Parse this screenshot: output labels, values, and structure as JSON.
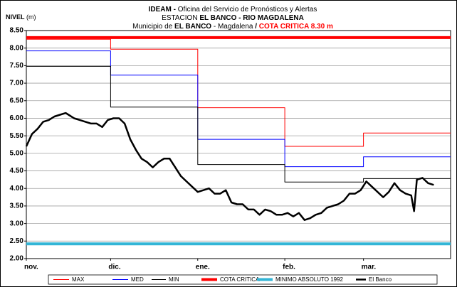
{
  "chart_data": {
    "type": "line",
    "title_lines": [
      [
        "IDEAM - ",
        "Oficina del Servicio de Pronósticos y Alertas"
      ],
      [
        "ESTACION ",
        "EL BANCO -  RIO MAGDALENA"
      ],
      [
        "Municipio de ",
        "EL BANCO",
        " - Magdalena ",
        " /  ",
        "COTA CRITICA 8.30 m"
      ]
    ],
    "ylabel": [
      "NIVEL",
      " (m)"
    ],
    "xlim": [
      0,
      151
    ],
    "xticks": [
      {
        "value": 0,
        "label": "nov."
      },
      {
        "value": 30,
        "label": "dic."
      },
      {
        "value": 61,
        "label": "ene."
      },
      {
        "value": 92,
        "label": "feb."
      },
      {
        "value": 120,
        "label": "mar."
      }
    ],
    "ylim": [
      2,
      8.5
    ],
    "yticks": [
      {
        "value": 2,
        "label": "2.00"
      },
      {
        "value": 2.5,
        "label": "2.50"
      },
      {
        "value": 3,
        "label": "3.00"
      },
      {
        "value": 3.5,
        "label": "3.50"
      },
      {
        "value": 4,
        "label": "4.00"
      },
      {
        "value": 4.5,
        "label": "4.50"
      },
      {
        "value": 5,
        "label": "5.00"
      },
      {
        "value": 5.5,
        "label": "5.50"
      },
      {
        "value": 6,
        "label": "6.00"
      },
      {
        "value": 6.5,
        "label": "6.50"
      },
      {
        "value": 7,
        "label": "7.00"
      },
      {
        "value": 7.5,
        "label": "7.50"
      },
      {
        "value": 8,
        "label": "8.00"
      },
      {
        "value": 8.5,
        "label": "8.50"
      }
    ],
    "grid": true,
    "legend": "bottom",
    "series": [
      {
        "name": "MAX",
        "color": "#ff0000",
        "line_width": 1,
        "x": [
          0,
          30,
          30,
          61,
          61,
          92,
          92,
          120,
          120,
          151
        ],
        "values": [
          8.25,
          8.25,
          7.97,
          7.97,
          6.3,
          6.3,
          5.2,
          5.2,
          5.58,
          5.58
        ]
      },
      {
        "name": "MED",
        "color": "#0000ff",
        "line_width": 1,
        "x": [
          0,
          30,
          30,
          61,
          61,
          92,
          92,
          120,
          120,
          151
        ],
        "values": [
          7.92,
          7.92,
          7.23,
          7.23,
          5.4,
          5.4,
          4.62,
          4.62,
          4.9,
          4.9
        ]
      },
      {
        "name": "MIN",
        "color": "#000000",
        "line_width": 1,
        "x": [
          0,
          30,
          30,
          61,
          61,
          92,
          92,
          120,
          120,
          151
        ],
        "values": [
          7.48,
          7.48,
          6.32,
          6.32,
          4.68,
          4.68,
          4.18,
          4.18,
          4.28,
          4.28
        ]
      },
      {
        "name": "COTA CRITICA",
        "color": "#ff0000",
        "line_width": 4,
        "x": [
          0,
          151
        ],
        "values": [
          8.3,
          8.3
        ]
      },
      {
        "name": "MINIMO ABSOLUTO 1992",
        "color": "#33b5d6",
        "line_width": 4,
        "x": [
          0,
          151
        ],
        "values": [
          2.42,
          2.42
        ]
      },
      {
        "name": "El Banco",
        "color": "#000000",
        "line_width": 2.5,
        "x": [
          0,
          2,
          4,
          6,
          8,
          10,
          12,
          14,
          15,
          17,
          19,
          21,
          23,
          25,
          27,
          29,
          31,
          33,
          35,
          37,
          39,
          41,
          43,
          45,
          47,
          49,
          51,
          53,
          55,
          57,
          59,
          61,
          63,
          65,
          67,
          69,
          71,
          73,
          75,
          77,
          79,
          81,
          83,
          85,
          87,
          89,
          91,
          93,
          95,
          97,
          99,
          101,
          103,
          105,
          107,
          109,
          111,
          113,
          115,
          117,
          119,
          121,
          123,
          125,
          127,
          129,
          131,
          133,
          135,
          137,
          138,
          139,
          141,
          143,
          145
        ],
        "values": [
          5.2,
          5.55,
          5.7,
          5.9,
          5.95,
          6.05,
          6.1,
          6.15,
          6.1,
          6.0,
          5.95,
          5.9,
          5.85,
          5.85,
          5.75,
          5.95,
          6.0,
          6.0,
          5.85,
          5.4,
          5.1,
          4.85,
          4.75,
          4.6,
          4.75,
          4.85,
          4.85,
          4.6,
          4.35,
          4.2,
          4.05,
          3.9,
          3.95,
          4.0,
          3.85,
          3.85,
          3.95,
          3.6,
          3.55,
          3.55,
          3.4,
          3.4,
          3.25,
          3.4,
          3.35,
          3.25,
          3.25,
          3.3,
          3.2,
          3.3,
          3.1,
          3.15,
          3.25,
          3.3,
          3.45,
          3.5,
          3.55,
          3.65,
          3.85,
          3.85,
          3.95,
          4.2,
          4.05,
          3.9,
          3.75,
          3.9,
          4.15,
          3.95,
          3.85,
          3.8,
          3.35,
          4.25,
          4.3,
          4.15,
          4.1
        ]
      }
    ]
  }
}
